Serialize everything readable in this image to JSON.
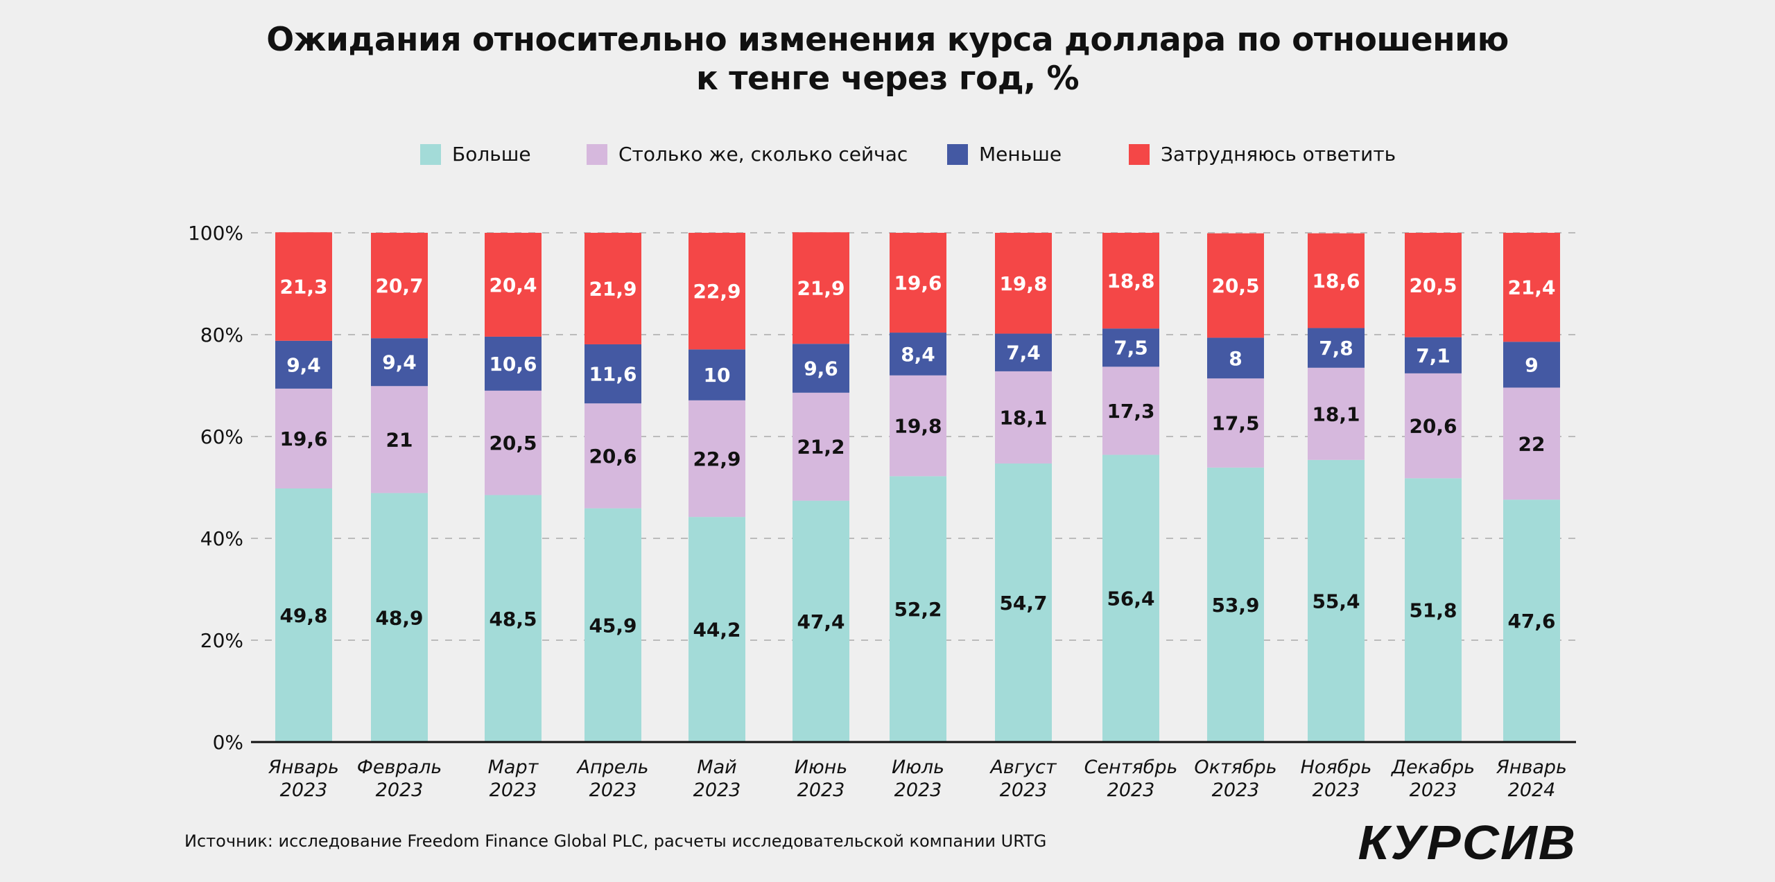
{
  "chart_data": {
    "type": "bar",
    "stacked": true,
    "title": "Ожидания относительно изменения  курса доллара по отношению к тенге через год, %",
    "title_lines": [
      "Ожидания относительно изменения  курса доллара по отношению",
      "к тенге через год, %"
    ],
    "categories": [
      [
        "Январь",
        "2023"
      ],
      [
        "Февраль",
        "2023"
      ],
      [
        "Март",
        "2023"
      ],
      [
        "Апрель",
        "2023"
      ],
      [
        "Май",
        "2023"
      ],
      [
        "Июнь",
        "2023"
      ],
      [
        "Июль",
        "2023"
      ],
      [
        "Август",
        "2023"
      ],
      [
        "Сентябрь",
        "2023"
      ],
      [
        "Октябрь",
        "2023"
      ],
      [
        "Ноябрь",
        "2023"
      ],
      [
        "Декабрь",
        "2023"
      ],
      [
        "Январь",
        "2024"
      ]
    ],
    "series": [
      {
        "name": "Больше",
        "color": "#a3dbd8",
        "label_color": "#111111",
        "values": [
          49.8,
          48.9,
          48.5,
          45.9,
          44.2,
          47.4,
          52.2,
          54.7,
          56.4,
          53.9,
          55.4,
          51.8,
          47.6
        ],
        "labels": [
          "49,8",
          "48,9",
          "48,5",
          "45,9",
          "44,2",
          "47,4",
          "52,2",
          "54,7",
          "56,4",
          "53,9",
          "55,4",
          "51,8",
          "47,6"
        ]
      },
      {
        "name": "Столько же, сколько сейчас",
        "color": "#d6b8dd",
        "label_color": "#111111",
        "values": [
          19.6,
          21,
          20.5,
          20.6,
          22.9,
          21.2,
          19.8,
          18.1,
          17.3,
          17.5,
          18.1,
          20.6,
          22
        ],
        "labels": [
          "19,6",
          "21",
          "20,5",
          "20,6",
          "22,9",
          "21,2",
          "19,8",
          "18,1",
          "17,3",
          "17,5",
          "18,1",
          "20,6",
          "22"
        ]
      },
      {
        "name": "Меньше",
        "color": "#4459a3",
        "label_color": "#ffffff",
        "values": [
          9.4,
          9.4,
          10.6,
          11.6,
          10,
          9.6,
          8.4,
          7.4,
          7.5,
          8,
          7.8,
          7.1,
          9
        ],
        "labels": [
          "9,4",
          "9,4",
          "10,6",
          "11,6",
          "10",
          "9,6",
          "8,4",
          "7,4",
          "7,5",
          "8",
          "7,8",
          "7,1",
          "9"
        ]
      },
      {
        "name": "Затрудняюсь ответить",
        "color": "#f44747",
        "label_color": "#ffffff",
        "values": [
          21.3,
          20.7,
          20.4,
          21.9,
          22.9,
          21.9,
          19.6,
          19.8,
          18.8,
          20.5,
          18.6,
          20.5,
          21.4
        ],
        "labels": [
          "21,3",
          "20,7",
          "20,4",
          "21,9",
          "22,9",
          "21,9",
          "19,6",
          "19,8",
          "18,8",
          "20,5",
          "18,6",
          "20,5",
          "21,4"
        ]
      }
    ],
    "ylim": [
      0,
      100
    ],
    "yticks": [
      "0%",
      "20%",
      "40%",
      "60%",
      "80%",
      "100%"
    ],
    "ytick_values": [
      0,
      20,
      40,
      60,
      80,
      100
    ],
    "grid": "horizontal dashed",
    "legend": "top"
  },
  "source": "Источник: исследование Freedom Finance Global PLC, расчеты исследовательской компании URTG",
  "logo": "КУРСИВ"
}
